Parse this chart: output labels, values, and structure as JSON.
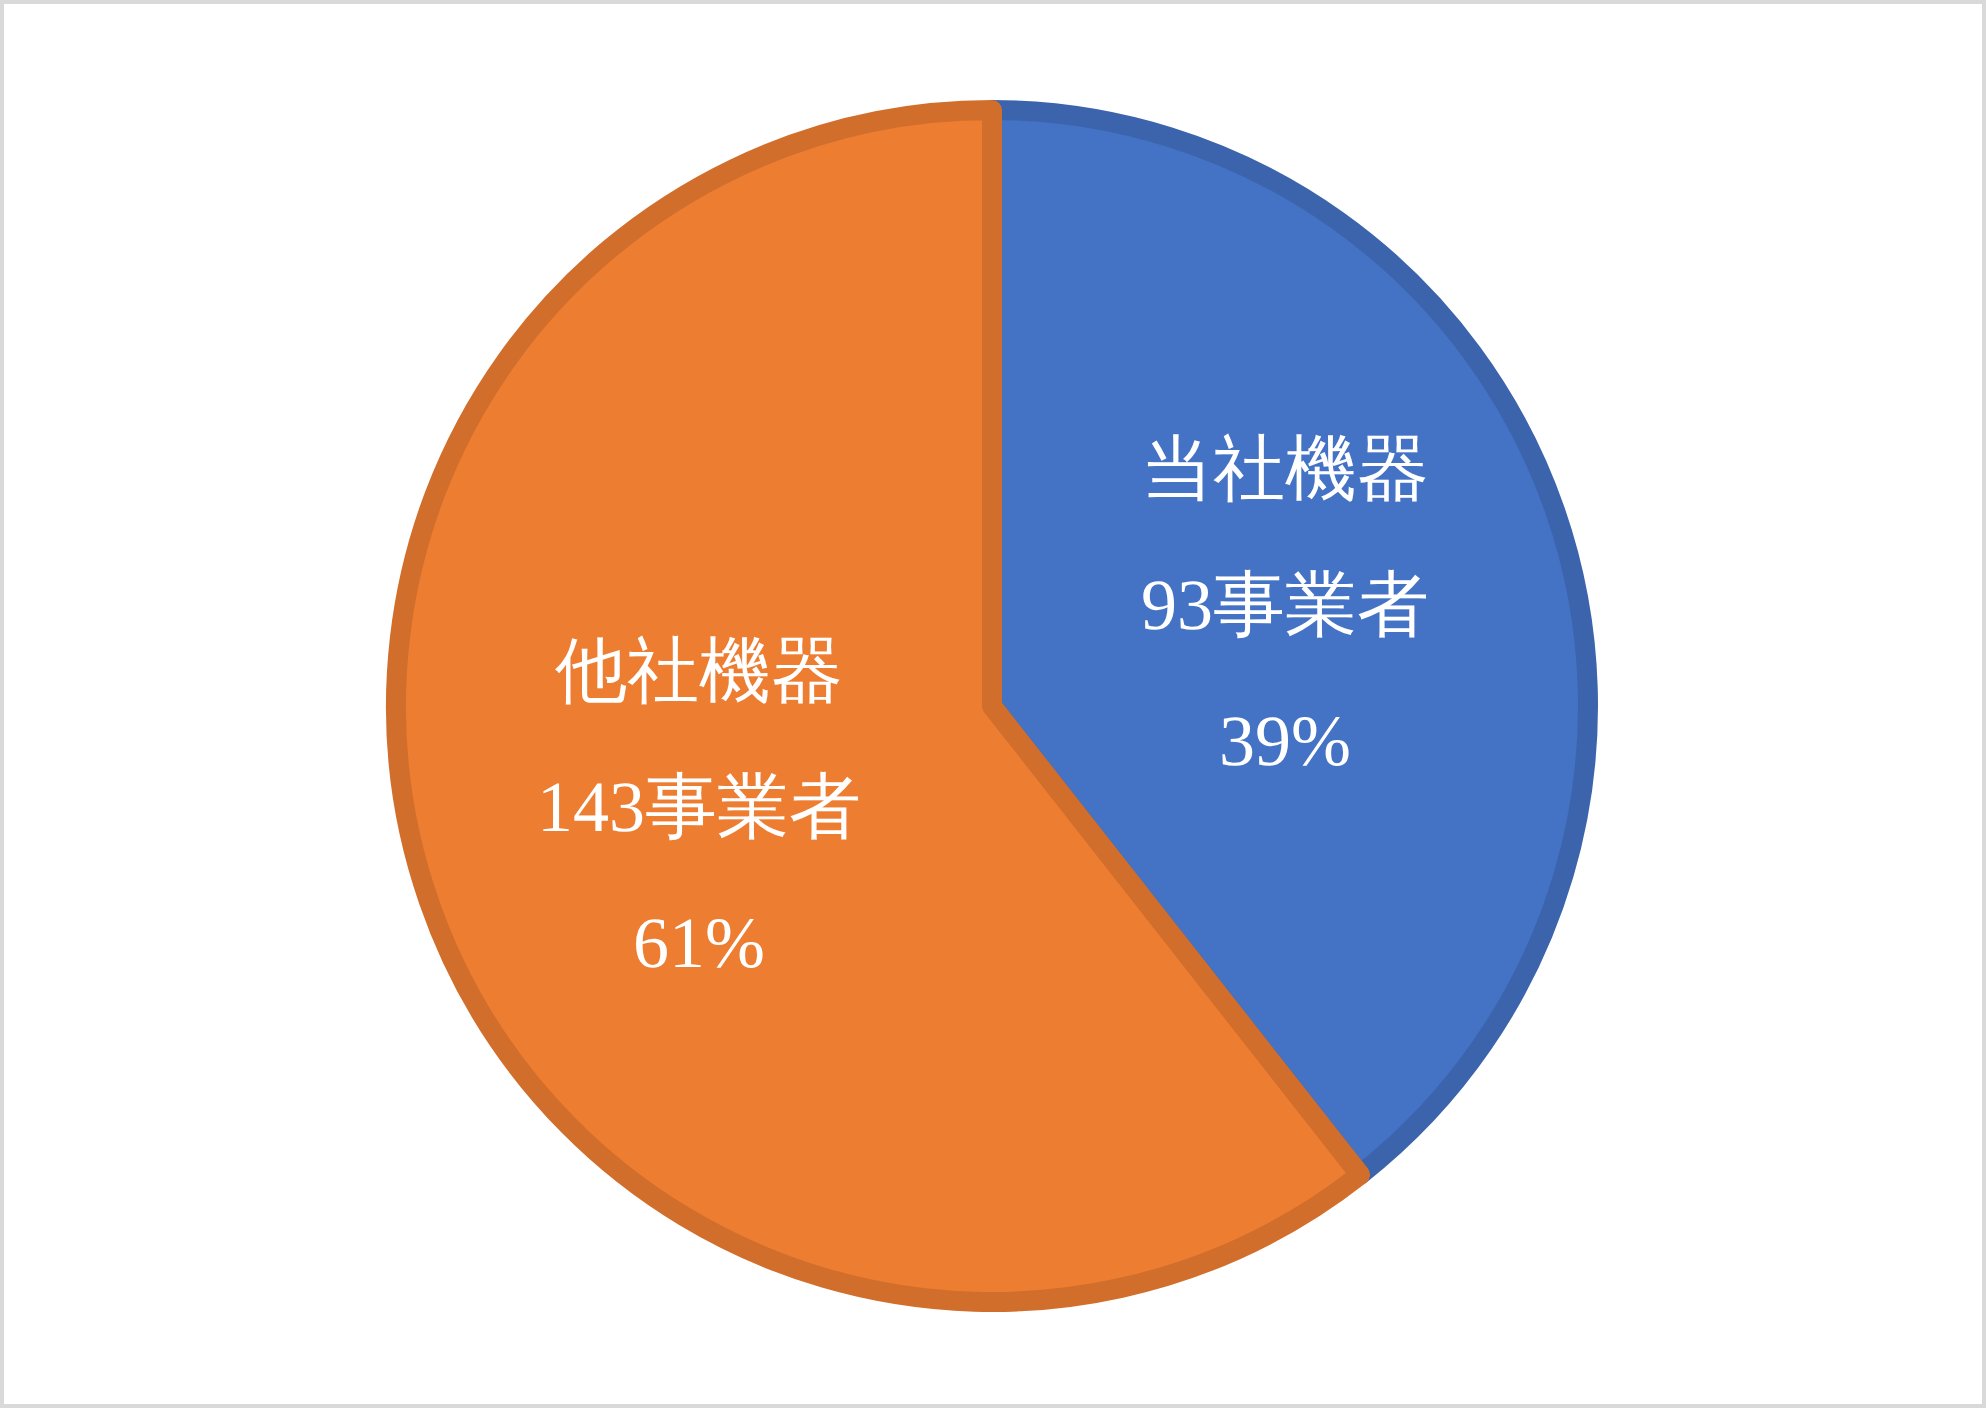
{
  "chart_data": {
    "type": "pie",
    "categories": [
      "当社機器",
      "他社機器"
    ],
    "values": [
      93,
      143
    ],
    "colors": [
      "#4472c4",
      "#ed7d31"
    ],
    "value_labels": [
      "93事業者\n39%",
      "143事業者\n61%"
    ]
  }
}
